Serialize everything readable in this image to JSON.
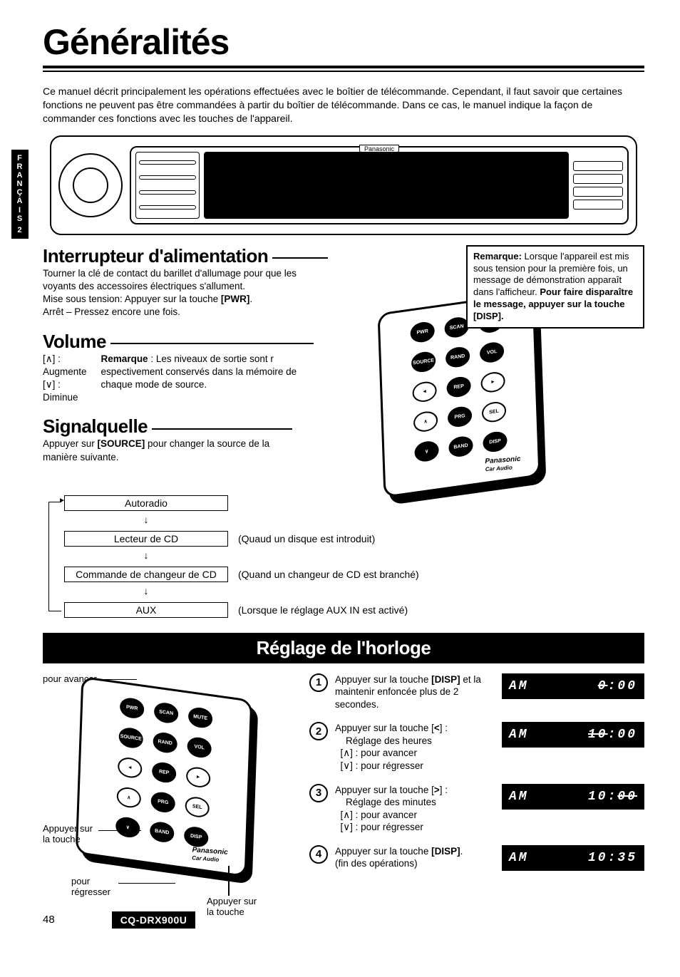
{
  "title": "Généralités",
  "intro": "Ce manuel décrit principalement les opérations effectuées avec le boîtier de télécommande. Cependant, il faut savoir que certaines fonctions ne peuvent pas être commandées à partir du boîtier de télécommande. Dans ce cas, le manuel indique la façon de commander ces fonctions avec les touches de l'appareil.",
  "lang_tab": {
    "letters": "FRANÇAIS",
    "num": "2"
  },
  "head_unit": {
    "brand": "Panasonic"
  },
  "note": {
    "label": "Remarque:",
    "text1": " Lorsque l'appareil est mis sous tension pour la première fois, un message de démonstration apparaît dans l'afficheur. ",
    "bold": "Pour faire disparaître le message, appuyer sur la touche [DISP]."
  },
  "power": {
    "heading": "Interrupteur d'alimentation",
    "l1": "Tourner la clé de contact du barillet d'allumage pour que les voyants des accessoires électriques s'allument.",
    "l2a": "Mise sous tension: Appuyer sur la touche ",
    "l2b": "[PWR]",
    "l2c": ".",
    "l3": "Arrêt – Pressez encore une fois."
  },
  "volume": {
    "heading": "Volume",
    "up": "[∧] : Augmente",
    "down": "[∨] : Diminue",
    "note_label": "Remarque",
    "note_text": " : Les niveaux de sortie sont r espectivement conservés dans la mémoire de chaque mode de source."
  },
  "source": {
    "heading": "Signalquelle",
    "l1a": "Appuyer sur ",
    "l1b": "[SOURCE]",
    "l1c": " pour changer la source de la manière suivante.",
    "items": [
      {
        "box": "Autoradio",
        "annot": ""
      },
      {
        "box": "Lecteur de CD",
        "annot": "(Quaud un disque est introduit)"
      },
      {
        "box": "Commande de changeur de CD",
        "annot": "(Quand un changeur de CD est branché)"
      },
      {
        "box": "AUX",
        "annot": "(Lorsque le réglage AUX IN est activé)"
      }
    ]
  },
  "remote": {
    "rows": [
      [
        "PWR",
        "SCAN",
        "MUTE"
      ],
      [
        "SOURCE",
        "RAND",
        "VOL"
      ],
      [
        "◄",
        "REP",
        "►"
      ],
      [
        "∧",
        "PRG",
        "SEL"
      ],
      [
        "∨",
        "BAND",
        "DISP"
      ]
    ],
    "brand": "Panasonic",
    "sub": "Car Audio"
  },
  "clock": {
    "bar": "Réglage de l'horloge",
    "callouts": {
      "avancer": "pour avancer",
      "appuyer": "Appuyer sur la touche",
      "regresser": "pour régresser",
      "appuyer2": "Appuyer sur la touche"
    },
    "steps": [
      {
        "n": "1",
        "text": "Appuyer sur la touche <b>[DISP]</b> et la maintenir enfoncée plus de 2 secondes.",
        "lcd": {
          "left": "AM",
          "right": "0:00",
          "strike": "right-partial"
        }
      },
      {
        "n": "2",
        "text": "Appuyer sur la touche [<b>&lt;</b>] :<br>&nbsp;&nbsp;&nbsp;&nbsp;Réglage des heures<br>&nbsp;&nbsp;[∧] : pour avancer<br>&nbsp;&nbsp;[∨] : pour régresser",
        "lcd": {
          "left": "AM",
          "right": "10:00",
          "strike": "hours"
        }
      },
      {
        "n": "3",
        "text": "Appuyer sur la touche [<b>&gt;</b>] :<br>&nbsp;&nbsp;&nbsp;&nbsp;Réglage des minutes<br>&nbsp;&nbsp;[∧] : pour avancer<br>&nbsp;&nbsp;[∨] : pour régresser",
        "lcd": {
          "left": "AM",
          "right": "10:00",
          "strike": "minutes"
        }
      },
      {
        "n": "4",
        "text": "Appuyer sur la touche <b>[DISP]</b>.<br>(fin des opérations)",
        "lcd": {
          "left": "AM",
          "right": "10:35"
        }
      }
    ]
  },
  "footer": {
    "page": "48",
    "model": "CQ-DRX900U"
  }
}
